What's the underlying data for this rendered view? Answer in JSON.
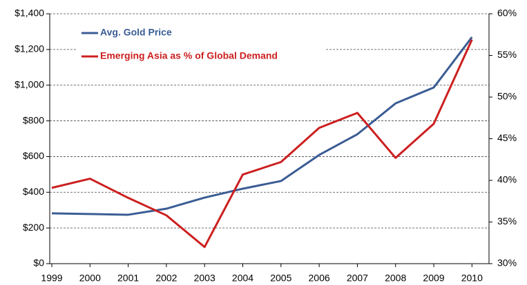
{
  "chart_data": {
    "type": "line",
    "categories": [
      "1999",
      "2000",
      "2001",
      "2002",
      "2003",
      "2004",
      "2005",
      "2006",
      "2007",
      "2008",
      "2009",
      "2010"
    ],
    "series": [
      {
        "name": "Avg. Gold Price",
        "color": "#3a5c94",
        "values": [
          282,
          278,
          274,
          308,
          370,
          420,
          463,
          609,
          725,
          898,
          987,
          1269
        ]
      },
      {
        "name": "Emerging Asia as % of Global Demand",
        "color": "#cc1f1f",
        "axis": "y2",
        "values": [
          39.1,
          40.2,
          37.9,
          35.8,
          32.0,
          40.7,
          42.2,
          46.3,
          48.1,
          42.7,
          46.8,
          56.9
        ]
      }
    ],
    "ylim": [
      0,
      1400
    ],
    "yticks": [
      {
        "value": 0,
        "label": "$0"
      },
      {
        "value": 200,
        "label": "$200"
      },
      {
        "value": 400,
        "label": "$400"
      },
      {
        "value": 600,
        "label": "$600"
      },
      {
        "value": 800,
        "label": "$800"
      },
      {
        "value": 1000,
        "label": "$1,000"
      },
      {
        "value": 1200,
        "label": "$1,200"
      },
      {
        "value": 1400,
        "label": "$1,400"
      }
    ],
    "y2lim": [
      30,
      60
    ],
    "y2ticks": [
      {
        "value": 30,
        "label": "30%"
      },
      {
        "value": 35,
        "label": "35%"
      },
      {
        "value": 40,
        "label": "40%"
      },
      {
        "value": 45,
        "label": "45%"
      },
      {
        "value": 50,
        "label": "50%"
      },
      {
        "value": 55,
        "label": "55%"
      },
      {
        "value": 60,
        "label": "60%"
      }
    ],
    "grid": true,
    "legend": "upper-left"
  }
}
